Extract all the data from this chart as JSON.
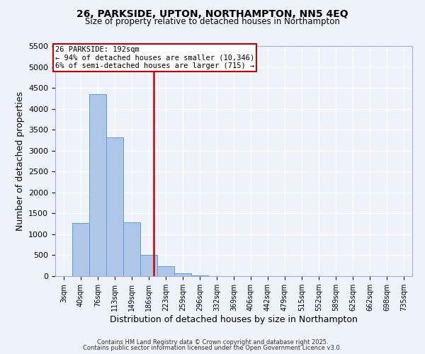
{
  "title": "26, PARKSIDE, UPTON, NORTHAMPTON, NN5 4EQ",
  "subtitle": "Size of property relative to detached houses in Northampton",
  "xlabel": "Distribution of detached houses by size in Northampton",
  "ylabel": "Number of detached properties",
  "bin_labels": [
    "3sqm",
    "40sqm",
    "76sqm",
    "113sqm",
    "149sqm",
    "186sqm",
    "223sqm",
    "259sqm",
    "296sqm",
    "332sqm",
    "369sqm",
    "406sqm",
    "442sqm",
    "479sqm",
    "515sqm",
    "552sqm",
    "589sqm",
    "625sqm",
    "662sqm",
    "698sqm",
    "735sqm"
  ],
  "bar_values": [
    0,
    1270,
    4350,
    3320,
    1290,
    500,
    240,
    75,
    20,
    5,
    2,
    0,
    0,
    0,
    0,
    0,
    0,
    0,
    0,
    0,
    0
  ],
  "bar_color": "#aec6e8",
  "bar_edgecolor": "#5a9fd4",
  "vline_x": 5.28,
  "vline_color": "#cc0000",
  "annotation_title": "26 PARKSIDE: 192sqm",
  "annotation_line1": "← 94% of detached houses are smaller (10,346)",
  "annotation_line2": "6% of semi-detached houses are larger (715) →",
  "box_color": "#cc0000",
  "ylim": [
    0,
    5500
  ],
  "yticks": [
    0,
    500,
    1000,
    1500,
    2000,
    2500,
    3000,
    3500,
    4000,
    4500,
    5000,
    5500
  ],
  "footer1": "Contains HM Land Registry data © Crown copyright and database right 2025.",
  "footer2": "Contains public sector information licensed under the Open Government Licence v3.0.",
  "bg_color": "#eef2fb",
  "grid_color": "#ffffff",
  "fig_bg": "#eef2fb"
}
